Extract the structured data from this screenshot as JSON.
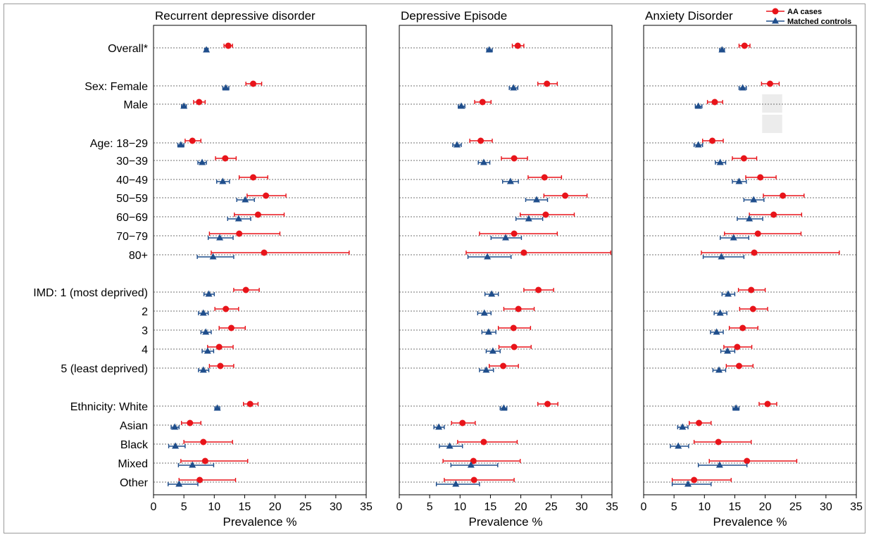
{
  "chart_data": {
    "type": "forest",
    "xlabel": "Prevalence %",
    "xlim": [
      0,
      35
    ],
    "xticks": [
      0,
      5,
      10,
      15,
      20,
      25,
      30,
      35
    ],
    "grid": "horizontal-dotted",
    "legend": {
      "placement": "top-right",
      "entries": [
        {
          "name": "AA cases",
          "marker": "circle",
          "color": "#e8141a"
        },
        {
          "name": "Matched controls",
          "marker": "triangle",
          "color": "#1f4e8c"
        }
      ]
    },
    "rows": [
      {
        "label": "Overall*",
        "group": "overall"
      },
      {
        "label": "Sex: Female",
        "group": "sex"
      },
      {
        "label": "Male",
        "group": "sex"
      },
      {
        "label": "Age: 18−29",
        "group": "age"
      },
      {
        "label": "30−39",
        "group": "age"
      },
      {
        "label": "40−49",
        "group": "age"
      },
      {
        "label": "50−59",
        "group": "age"
      },
      {
        "label": "60−69",
        "group": "age"
      },
      {
        "label": "70−79",
        "group": "age"
      },
      {
        "label": "80+",
        "group": "age"
      },
      {
        "label": "IMD: 1 (most deprived)",
        "group": "imd"
      },
      {
        "label": "2",
        "group": "imd"
      },
      {
        "label": "3",
        "group": "imd"
      },
      {
        "label": "4",
        "group": "imd"
      },
      {
        "label": "5 (least deprived)",
        "group": "imd"
      },
      {
        "label": "Ethnicity: White",
        "group": "ethnicity"
      },
      {
        "label": "Asian",
        "group": "ethnicity"
      },
      {
        "label": "Black",
        "group": "ethnicity"
      },
      {
        "label": "Mixed",
        "group": "ethnicity"
      },
      {
        "label": "Other",
        "group": "ethnicity"
      }
    ],
    "panels": [
      {
        "title": "Recurrent depressive disorder",
        "series": [
          {
            "name": "AA cases",
            "estimates": [
              [
                12.3,
                11.6,
                13.0
              ],
              [
                16.4,
                15.2,
                17.8
              ],
              [
                7.5,
                6.6,
                8.5
              ],
              [
                6.4,
                5.2,
                7.8
              ],
              [
                11.8,
                10.2,
                13.6
              ],
              [
                16.4,
                14.1,
                18.8
              ],
              [
                18.5,
                15.4,
                21.8
              ],
              [
                17.2,
                13.3,
                21.5
              ],
              [
                14.1,
                9.2,
                20.8
              ],
              [
                18.2,
                9.5,
                32.2
              ],
              [
                15.2,
                13.2,
                17.4
              ],
              [
                11.9,
                10.1,
                14.0
              ],
              [
                12.8,
                10.8,
                15.1
              ],
              [
                10.8,
                8.9,
                13.1
              ],
              [
                11.0,
                9.2,
                13.2
              ],
              [
                15.9,
                14.8,
                17.2
              ],
              [
                6.0,
                4.6,
                7.8
              ],
              [
                8.2,
                5.0,
                13.0
              ],
              [
                8.5,
                4.5,
                15.5
              ],
              [
                7.6,
                4.2,
                13.5
              ]
            ]
          },
          {
            "name": "Matched controls",
            "estimates": [
              [
                8.7,
                8.4,
                9.0
              ],
              [
                11.9,
                11.4,
                12.4
              ],
              [
                5.0,
                4.6,
                5.4
              ],
              [
                4.5,
                4.0,
                5.0
              ],
              [
                8.0,
                7.3,
                8.7
              ],
              [
                11.4,
                10.4,
                12.5
              ],
              [
                15.1,
                13.7,
                16.6
              ],
              [
                14.0,
                12.2,
                16.0
              ],
              [
                10.9,
                9.0,
                13.1
              ],
              [
                9.8,
                7.2,
                13.2
              ],
              [
                9.1,
                8.3,
                10.0
              ],
              [
                8.2,
                7.4,
                9.0
              ],
              [
                8.6,
                7.8,
                9.5
              ],
              [
                8.9,
                8.0,
                9.9
              ],
              [
                8.2,
                7.4,
                9.1
              ],
              [
                10.5,
                10.1,
                10.9
              ],
              [
                3.5,
                2.9,
                4.2
              ],
              [
                3.6,
                2.5,
                5.2
              ],
              [
                6.4,
                4.1,
                9.9
              ],
              [
                4.2,
                2.4,
                7.3
              ]
            ]
          }
        ]
      },
      {
        "title": "Depressive Episode",
        "series": [
          {
            "name": "AA cases",
            "estimates": [
              [
                19.5,
                18.6,
                20.5
              ],
              [
                24.3,
                22.8,
                26.0
              ],
              [
                13.7,
                12.4,
                15.1
              ],
              [
                13.4,
                11.6,
                15.3
              ],
              [
                18.9,
                16.8,
                21.1
              ],
              [
                23.9,
                21.2,
                26.7
              ],
              [
                27.3,
                23.8,
                30.9
              ],
              [
                24.1,
                19.9,
                28.8
              ],
              [
                18.9,
                13.2,
                26.0
              ],
              [
                20.5,
                11.0,
                34.8
              ],
              [
                22.9,
                20.5,
                25.4
              ],
              [
                19.6,
                17.2,
                22.2
              ],
              [
                18.8,
                16.3,
                21.6
              ],
              [
                18.9,
                16.4,
                21.7
              ],
              [
                17.1,
                14.8,
                19.6
              ],
              [
                24.4,
                22.8,
                26.1
              ],
              [
                10.4,
                8.6,
                12.5
              ],
              [
                13.9,
                9.6,
                19.4
              ],
              [
                12.2,
                7.2,
                19.9
              ],
              [
                12.3,
                7.4,
                18.9
              ]
            ]
          },
          {
            "name": "Matched controls",
            "estimates": [
              [
                14.8,
                14.4,
                15.3
              ],
              [
                18.8,
                18.1,
                19.5
              ],
              [
                10.2,
                9.7,
                10.8
              ],
              [
                9.5,
                8.8,
                10.2
              ],
              [
                13.9,
                13.0,
                14.9
              ],
              [
                18.3,
                17.0,
                19.6
              ],
              [
                22.6,
                20.8,
                24.4
              ],
              [
                21.3,
                19.2,
                23.6
              ],
              [
                17.5,
                15.1,
                20.1
              ],
              [
                14.5,
                11.3,
                18.4
              ],
              [
                15.2,
                14.1,
                16.3
              ],
              [
                14.0,
                12.9,
                15.1
              ],
              [
                14.7,
                13.6,
                15.9
              ],
              [
                15.4,
                14.3,
                16.6
              ],
              [
                14.3,
                13.2,
                15.5
              ],
              [
                17.2,
                16.6,
                17.7
              ],
              [
                6.5,
                5.7,
                7.4
              ],
              [
                8.3,
                6.6,
                10.4
              ],
              [
                11.8,
                8.5,
                16.2
              ],
              [
                9.3,
                6.1,
                13.2
              ]
            ]
          }
        ]
      },
      {
        "title": "Anxiety Disorder",
        "series": [
          {
            "name": "AA cases",
            "estimates": [
              [
                16.6,
                15.7,
                17.5
              ],
              [
                20.8,
                19.4,
                22.3
              ],
              [
                11.7,
                10.5,
                13.0
              ],
              [
                11.3,
                9.7,
                13.1
              ],
              [
                16.5,
                14.6,
                18.6
              ],
              [
                19.2,
                16.8,
                21.8
              ],
              [
                22.9,
                19.7,
                26.4
              ],
              [
                21.4,
                17.4,
                26.0
              ],
              [
                18.8,
                13.3,
                25.9
              ],
              [
                18.2,
                9.5,
                32.2
              ],
              [
                17.7,
                15.6,
                20.0
              ],
              [
                18.0,
                15.8,
                20.4
              ],
              [
                16.3,
                14.1,
                18.8
              ],
              [
                15.4,
                13.2,
                17.8
              ],
              [
                15.7,
                13.6,
                18.0
              ],
              [
                20.4,
                19.0,
                21.9
              ],
              [
                9.1,
                7.5,
                11.1
              ],
              [
                12.3,
                8.3,
                17.7
              ],
              [
                17.0,
                10.8,
                25.2
              ],
              [
                8.3,
                4.7,
                14.4
              ]
            ]
          },
          {
            "name": "Matched controls",
            "estimates": [
              [
                12.9,
                12.5,
                13.3
              ],
              [
                16.3,
                15.7,
                16.9
              ],
              [
                9.0,
                8.5,
                9.6
              ],
              [
                9.0,
                8.3,
                9.7
              ],
              [
                12.6,
                11.8,
                13.5
              ],
              [
                15.7,
                14.6,
                16.9
              ],
              [
                18.1,
                16.5,
                19.8
              ],
              [
                17.4,
                15.4,
                19.6
              ],
              [
                14.8,
                12.6,
                17.3
              ],
              [
                12.8,
                9.8,
                16.5
              ],
              [
                13.9,
                12.9,
                15.0
              ],
              [
                12.6,
                11.6,
                13.7
              ],
              [
                12.0,
                11.0,
                13.1
              ],
              [
                13.8,
                12.7,
                15.0
              ],
              [
                12.4,
                11.4,
                13.5
              ],
              [
                15.2,
                14.7,
                15.7
              ],
              [
                6.4,
                5.6,
                7.3
              ],
              [
                5.7,
                4.4,
                7.4
              ],
              [
                12.5,
                9.0,
                17.0
              ],
              [
                7.3,
                4.7,
                11.1
              ]
            ]
          }
        ]
      }
    ]
  }
}
